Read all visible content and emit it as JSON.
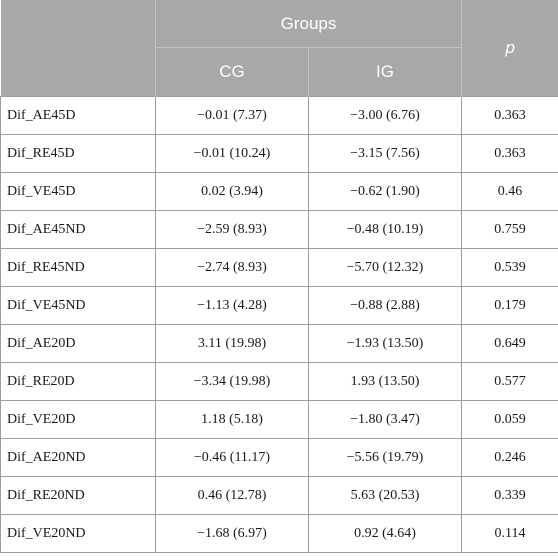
{
  "header": {
    "groups": "Groups",
    "p": "p",
    "cg": "CG",
    "ig": "IG"
  },
  "rows": [
    {
      "variable": "Dif_AE45D",
      "cg": "−0.01 (7.37)",
      "ig": "−3.00 (6.76)",
      "p": "0.363"
    },
    {
      "variable": "Dif_RE45D",
      "cg": "−0.01 (10.24)",
      "ig": "−3.15 (7.56)",
      "p": "0.363"
    },
    {
      "variable": "Dif_VE45D",
      "cg": "0.02 (3.94)",
      "ig": "−0.62 (1.90)",
      "p": "0.46"
    },
    {
      "variable": "Dif_AE45ND",
      "cg": "−2.59 (8.93)",
      "ig": "−0.48 (10.19)",
      "p": "0.759"
    },
    {
      "variable": "Dif_RE45ND",
      "cg": "−2.74 (8.93)",
      "ig": "−5.70 (12.32)",
      "p": "0.539"
    },
    {
      "variable": "Dif_VE45ND",
      "cg": "−1.13 (4.28)",
      "ig": "−0.88 (2.88)",
      "p": "0.179"
    },
    {
      "variable": "Dif_AE20D",
      "cg": "3.11 (19.98)",
      "ig": "−1.93 (13.50)",
      "p": "0.649"
    },
    {
      "variable": "Dif_RE20D",
      "cg": "−3.34 (19.98)",
      "ig": "1.93 (13.50)",
      "p": "0.577"
    },
    {
      "variable": "Dif_VE20D",
      "cg": "1.18 (5.18)",
      "ig": "−1.80 (3.47)",
      "p": "0.059"
    },
    {
      "variable": "Dif_AE20ND",
      "cg": "−0.46 (11.17)",
      "ig": "−5.56 (19.79)",
      "p": "0.246"
    },
    {
      "variable": "Dif_RE20ND",
      "cg": "0.46 (12.78)",
      "ig": "5.63 (20.53)",
      "p": "0.339"
    },
    {
      "variable": "Dif_VE20ND",
      "cg": "−1.68 (6.97)",
      "ig": "0.92 (4.64)",
      "p": "0.114"
    }
  ]
}
